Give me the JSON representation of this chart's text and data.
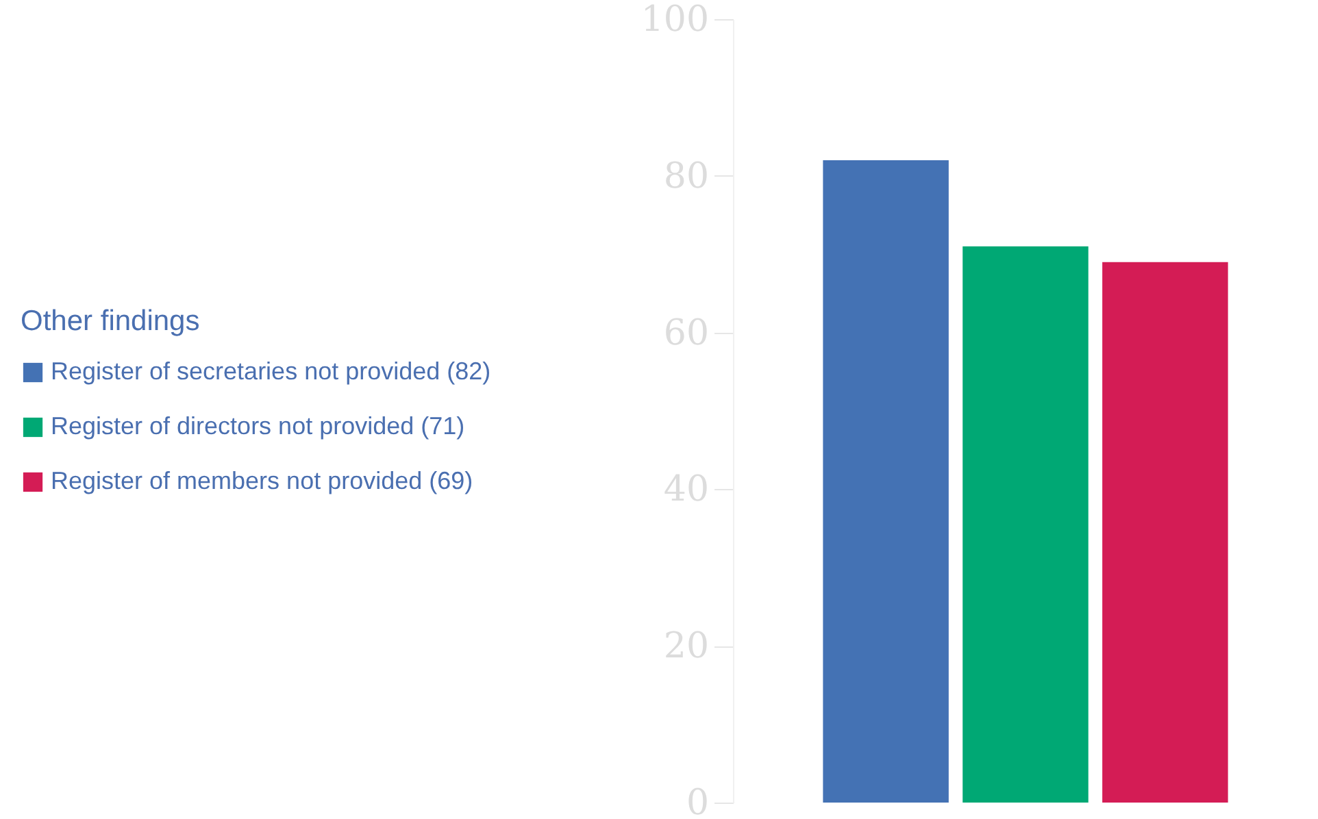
{
  "chart_data": {
    "type": "bar",
    "legend_title": "Other findings",
    "categories": [
      null
    ],
    "series": [
      {
        "name": "Register of secretaries not provided (82)",
        "color": "#4472b4",
        "values": [
          82
        ]
      },
      {
        "name": "Register of directors not provided (71)",
        "color": "#00a874",
        "values": [
          71
        ]
      },
      {
        "name": "Register of members not provided (69)",
        "color": "#d41c55",
        "values": [
          69
        ]
      }
    ],
    "ylim": [
      0,
      100
    ],
    "yticks": [
      0,
      20,
      40,
      60,
      80,
      100
    ],
    "grid": false,
    "legend": "left"
  }
}
